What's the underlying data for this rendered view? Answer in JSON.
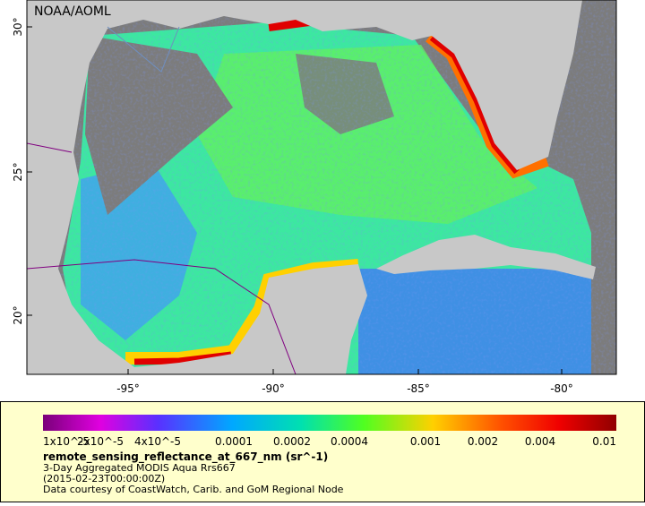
{
  "map": {
    "credit": "NOAA/AOML",
    "lat_labels": [
      "30°",
      "25°",
      "20°"
    ],
    "lon_labels": [
      "-95°",
      "-90°",
      "-85°",
      "-80°"
    ]
  },
  "legend": {
    "tick_labels": [
      "1x10^-5",
      "2x10^-5",
      "4x10^-5",
      "0.0001",
      "0.0002",
      "0.0004",
      "0.001",
      "0.002",
      "0.004",
      "0.01"
    ],
    "title": "remote_sensing_reflectance_at_667_nm (sr^-1)",
    "lines": [
      "3-Day Aggregated MODIS Aqua Rrs667",
      "(2015-02-23T00:00:00Z)",
      "Data courtesy of CoastWatch, Carib. and GoM Regional Node"
    ]
  }
}
